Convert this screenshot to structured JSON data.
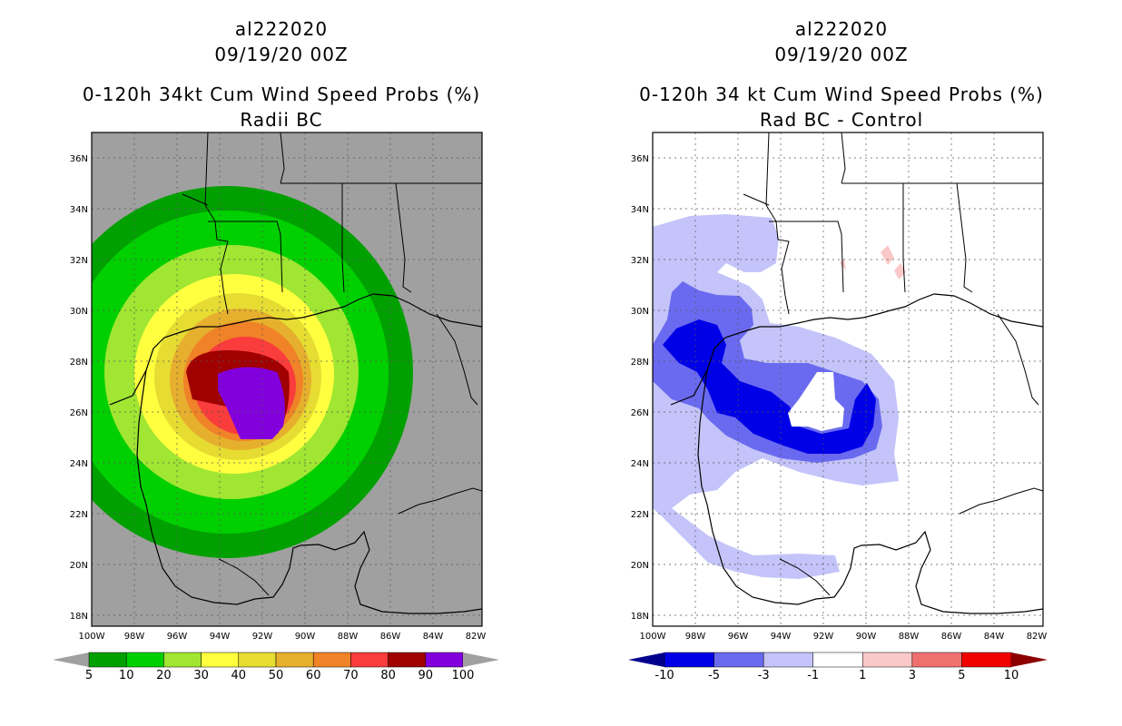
{
  "left_panel": {
    "storm_id": "al222020",
    "datetime": "09/19/20 00Z",
    "product": "0-120h 34kt Cum Wind Speed Probs (%)",
    "subtitle": "Radii BC",
    "lat_labels": [
      "36N",
      "34N",
      "32N",
      "30N",
      "28N",
      "26N",
      "24N",
      "22N",
      "20N",
      "18N"
    ],
    "lon_labels": [
      "100W",
      "98W",
      "96W",
      "94W",
      "92W",
      "90W",
      "88W",
      "86W",
      "84W",
      "82W"
    ],
    "colorbar": {
      "labels": [
        "5",
        "10",
        "20",
        "30",
        "40",
        "50",
        "60",
        "70",
        "80",
        "90",
        "100"
      ],
      "colors": [
        "#00a000",
        "#00d000",
        "#a0e632",
        "#ffff40",
        "#e6dc32",
        "#e6af2d",
        "#f08228",
        "#fa3c3c",
        "#a00000",
        "#8200dc"
      ],
      "under_color": "#a0a0a0",
      "over_color": "#a0a0a0"
    }
  },
  "right_panel": {
    "storm_id": "al222020",
    "datetime": "09/19/20 00Z",
    "product": "0-120h 34 kt Cum Wind Speed Probs (%)",
    "subtitle": "Rad BC - Control",
    "lat_labels": [
      "36N",
      "34N",
      "32N",
      "30N",
      "28N",
      "26N",
      "24N",
      "22N",
      "20N",
      "18N"
    ],
    "lon_labels": [
      "100W",
      "98W",
      "96W",
      "94W",
      "92W",
      "90W",
      "88W",
      "86W",
      "84W",
      "82W"
    ],
    "colorbar": {
      "labels": [
        "-10",
        "-5",
        "-3",
        "-1",
        "1",
        "3",
        "5",
        "10"
      ],
      "colors": [
        "#0000e6",
        "#6a6af0",
        "#c4c4fa",
        "#ffffff",
        "#fac8c8",
        "#f07070",
        "#f00000"
      ],
      "under_color": "#00008c",
      "over_color": "#8c0000"
    }
  },
  "colors": {
    "land_gray": "#a0a0a0",
    "coast": "#000000"
  }
}
